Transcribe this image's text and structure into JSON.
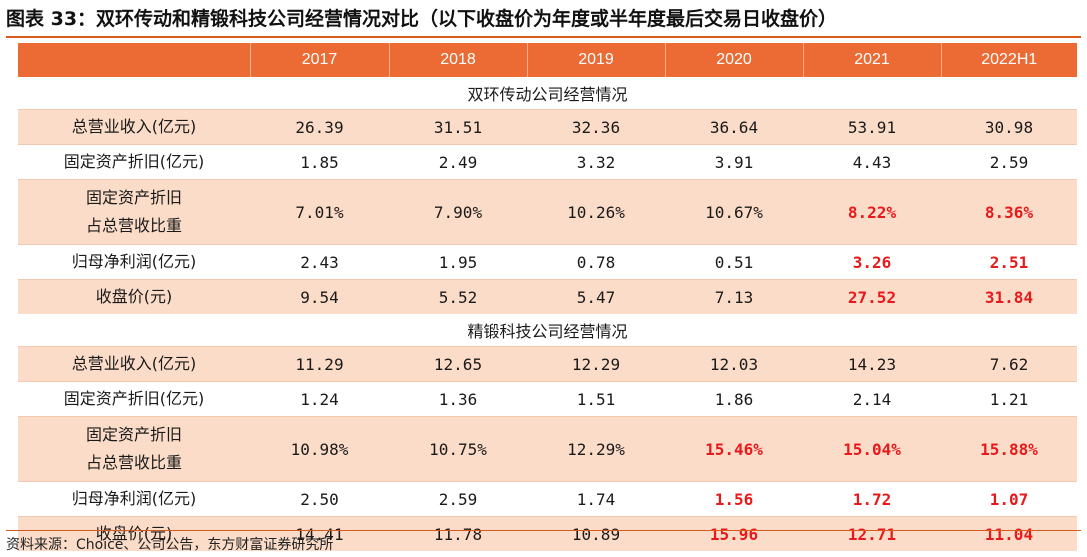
{
  "title": "图表 33：双环传动和精锻科技公司经营情况对比（以下收盘价为年度或半年度最后交易日收盘价）",
  "header": {
    "columns": [
      "",
      "2017",
      "2018",
      "2019",
      "2020",
      "2021",
      "2022H1"
    ]
  },
  "sections": [
    {
      "heading": "双环传动公司经营情况",
      "rows": [
        {
          "label": "总营业收入(亿元)",
          "values": [
            "26.39",
            "31.51",
            "32.36",
            "36.64",
            "53.91",
            "30.98"
          ],
          "highlight": [
            false,
            false,
            false,
            false,
            false,
            false
          ]
        },
        {
          "label": "固定资产折旧(亿元)",
          "values": [
            "1.85",
            "2.49",
            "3.32",
            "3.91",
            "4.43",
            "2.59"
          ],
          "highlight": [
            false,
            false,
            false,
            false,
            false,
            false
          ]
        },
        {
          "label_line1": "固定资产折旧",
          "label_line2": "占总营收比重",
          "values": [
            "7.01%",
            "7.90%",
            "10.26%",
            "10.67%",
            "8.22%",
            "8.36%"
          ],
          "highlight": [
            false,
            false,
            false,
            false,
            true,
            true
          ]
        },
        {
          "label": "归母净利润(亿元)",
          "values": [
            "2.43",
            "1.95",
            "0.78",
            "0.51",
            "3.26",
            "2.51"
          ],
          "highlight": [
            false,
            false,
            false,
            false,
            true,
            true
          ]
        },
        {
          "label": "收盘价(元)",
          "values": [
            "9.54",
            "5.52",
            "5.47",
            "7.13",
            "27.52",
            "31.84"
          ],
          "highlight": [
            false,
            false,
            false,
            false,
            true,
            true
          ]
        }
      ]
    },
    {
      "heading": "精锻科技公司经营情况",
      "rows": [
        {
          "label": "总营业收入(亿元)",
          "values": [
            "11.29",
            "12.65",
            "12.29",
            "12.03",
            "14.23",
            "7.62"
          ],
          "highlight": [
            false,
            false,
            false,
            false,
            false,
            false
          ]
        },
        {
          "label": "固定资产折旧(亿元)",
          "values": [
            "1.24",
            "1.36",
            "1.51",
            "1.86",
            "2.14",
            "1.21"
          ],
          "highlight": [
            false,
            false,
            false,
            false,
            false,
            false
          ]
        },
        {
          "label_line1": "固定资产折旧",
          "label_line2": "占总营收比重",
          "values": [
            "10.98%",
            "10.75%",
            "12.29%",
            "15.46%",
            "15.04%",
            "15.88%"
          ],
          "highlight": [
            false,
            false,
            false,
            true,
            true,
            true
          ]
        },
        {
          "label": "归母净利润(亿元)",
          "values": [
            "2.50",
            "2.59",
            "1.74",
            "1.56",
            "1.72",
            "1.07"
          ],
          "highlight": [
            false,
            false,
            false,
            true,
            true,
            true
          ]
        },
        {
          "label": "收盘价(元)",
          "values": [
            "14.41",
            "11.78",
            "10.89",
            "15.96",
            "12.71",
            "11.04"
          ],
          "highlight": [
            false,
            false,
            false,
            true,
            true,
            true
          ]
        }
      ]
    }
  ],
  "source": "资料来源：Choice、公司公告，东方财富证券研究所",
  "colors": {
    "header_bg": "#ec6b34",
    "row_shade": "#fbdcc8",
    "highlight": "#e8191b",
    "rule": "#d85a1c"
  }
}
